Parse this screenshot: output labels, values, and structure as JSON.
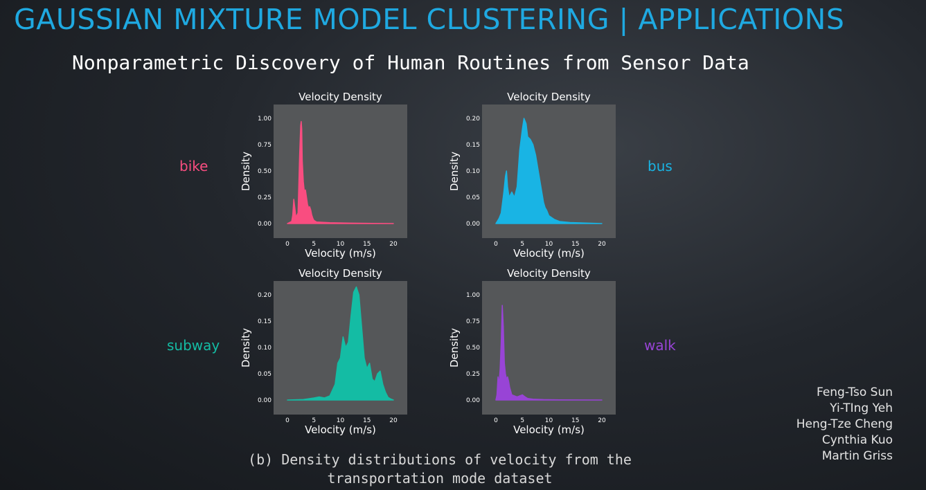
{
  "slide": {
    "title": "GAUSSIAN MIXTURE MODEL CLUSTERING | APPLICATIONS",
    "paper_title": "Nonparametric Discovery of Human Routines from Sensor Data",
    "caption_line1": "(b) Density distributions of velocity from the",
    "caption_line2": "transportation mode dataset",
    "authors": [
      "Feng-Tso Sun",
      "Yi-TIng Yeh",
      "Heng-Tze Cheng",
      "Cynthia Kuo",
      "Martin Griss"
    ]
  },
  "colors": {
    "title": "#1fa9e1",
    "panel_bg": "#555759",
    "bike": "#f94d80",
    "bus": "#19b4e4",
    "subway": "#14bca4",
    "walk": "#9844d6"
  },
  "chart_data": [
    {
      "type": "area",
      "mode_label": "bike",
      "title": "Velocity Density",
      "xlabel": "Velocity (m/s)",
      "ylabel": "Density",
      "xlim": [
        0,
        20
      ],
      "ylim": [
        0,
        1.0
      ],
      "xticks": [
        0,
        5,
        10,
        15,
        20
      ],
      "yticks": [
        0.0,
        0.25,
        0.5,
        0.75,
        1.0
      ],
      "ytick_labels": [
        "0.00",
        "0.25",
        "0.50",
        "0.75",
        "1.00"
      ],
      "color": "#f94d80",
      "x": [
        0,
        0.8,
        1.0,
        1.2,
        1.4,
        1.6,
        1.8,
        2.0,
        2.3,
        2.5,
        2.6,
        2.7,
        2.8,
        3.0,
        3.2,
        3.4,
        3.6,
        3.8,
        4.0,
        4.2,
        4.4,
        4.6,
        4.8,
        5.0,
        5.5,
        8,
        12,
        16,
        20
      ],
      "y": [
        0,
        0.02,
        0.08,
        0.23,
        0.15,
        0.06,
        0.08,
        0.1,
        0.65,
        0.93,
        0.97,
        0.9,
        0.6,
        0.4,
        0.3,
        0.32,
        0.25,
        0.18,
        0.15,
        0.16,
        0.13,
        0.08,
        0.05,
        0.03,
        0.015,
        0.008,
        0.004,
        0.002,
        0
      ]
    },
    {
      "type": "area",
      "mode_label": "bus",
      "title": "Velocity Density",
      "xlabel": "Velocity (m/s)",
      "ylabel": "Density",
      "xlim": [
        0,
        20
      ],
      "ylim": [
        0,
        0.2
      ],
      "xticks": [
        0,
        5,
        10,
        15,
        20
      ],
      "yticks": [
        0.0,
        0.05,
        0.1,
        0.15,
        0.2
      ],
      "ytick_labels": [
        "0.00",
        "0.05",
        "0.10",
        "0.15",
        "0.20"
      ],
      "color": "#19b4e4",
      "x": [
        0,
        0.3,
        0.6,
        1.0,
        1.5,
        1.8,
        2.0,
        2.2,
        2.5,
        3.0,
        3.5,
        4.0,
        4.5,
        5.0,
        5.3,
        5.7,
        6.0,
        6.5,
        7.0,
        7.5,
        8.0,
        8.5,
        9.0,
        9.3,
        9.6,
        10.0,
        11.0,
        12.0,
        14.0,
        17.0,
        20.0
      ],
      "y": [
        0,
        0.005,
        0.01,
        0.02,
        0.06,
        0.09,
        0.1,
        0.07,
        0.05,
        0.06,
        0.05,
        0.07,
        0.14,
        0.18,
        0.2,
        0.19,
        0.165,
        0.16,
        0.15,
        0.13,
        0.1,
        0.07,
        0.04,
        0.03,
        0.025,
        0.015,
        0.008,
        0.004,
        0.002,
        0.001,
        0
      ]
    },
    {
      "type": "area",
      "mode_label": "subway",
      "title": "Velocity Density",
      "xlabel": "Velocity (m/s)",
      "ylabel": "Density",
      "xlim": [
        0,
        20
      ],
      "ylim": [
        0,
        0.2
      ],
      "xticks": [
        0,
        5,
        10,
        15,
        20
      ],
      "yticks": [
        0.0,
        0.05,
        0.1,
        0.15,
        0.2
      ],
      "ytick_labels": [
        "0.00",
        "0.05",
        "0.10",
        "0.15",
        "0.20"
      ],
      "color": "#14bca4",
      "x": [
        0,
        3,
        5,
        6,
        7,
        8,
        9,
        9.5,
        10,
        10.5,
        11,
        11.5,
        12,
        12.5,
        13,
        13.5,
        14,
        14.5,
        15,
        15.5,
        16,
        16.5,
        17,
        17.5,
        18,
        18.5,
        19,
        19.5,
        20
      ],
      "y": [
        0,
        0.001,
        0.004,
        0.006,
        0.004,
        0.008,
        0.03,
        0.07,
        0.08,
        0.12,
        0.1,
        0.11,
        0.16,
        0.205,
        0.215,
        0.2,
        0.14,
        0.08,
        0.06,
        0.07,
        0.04,
        0.035,
        0.05,
        0.055,
        0.03,
        0.015,
        0.005,
        0.002,
        0
      ]
    },
    {
      "type": "area",
      "mode_label": "walk",
      "title": "Velocity Density",
      "xlabel": "Velocity (m/s)",
      "ylabel": "Density",
      "xlim": [
        0,
        20
      ],
      "ylim": [
        0,
        1.0
      ],
      "xticks": [
        0,
        5,
        10,
        15,
        20
      ],
      "yticks": [
        0.0,
        0.25,
        0.5,
        0.75,
        1.0
      ],
      "ytick_labels": [
        "0.00",
        "0.25",
        "0.50",
        "0.75",
        "1.00"
      ],
      "color": "#9844d6",
      "x": [
        0,
        0.2,
        0.4,
        0.6,
        0.8,
        1.0,
        1.2,
        1.4,
        1.6,
        1.8,
        2.0,
        2.2,
        2.4,
        2.6,
        3.0,
        3.5,
        4.0,
        4.5,
        5.0,
        5.5,
        6.0,
        7.0,
        9.0,
        12.0,
        16.0,
        20.0
      ],
      "y": [
        0,
        0.05,
        0.22,
        0.15,
        0.3,
        0.55,
        0.9,
        0.7,
        0.35,
        0.25,
        0.2,
        0.22,
        0.18,
        0.12,
        0.05,
        0.04,
        0.03,
        0.04,
        0.05,
        0.03,
        0.015,
        0.008,
        0.004,
        0.002,
        0.001,
        0
      ]
    }
  ]
}
